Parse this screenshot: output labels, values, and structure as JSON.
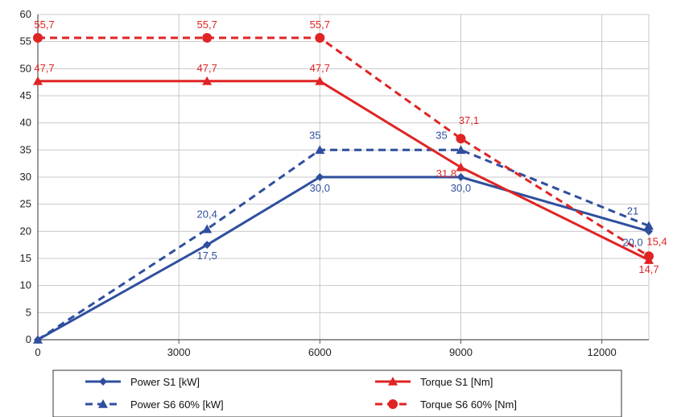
{
  "colors": {
    "blue": "#2f4f9e",
    "red": "#e02424",
    "grid": "#c8c8c8",
    "axis": "#555555"
  },
  "chart_data": {
    "type": "line",
    "xlim": [
      0,
      13000
    ],
    "ylim": [
      0,
      60
    ],
    "x_ticks": [
      "0",
      "3000",
      "6000",
      "9000",
      "12000"
    ],
    "x_tick_values": [
      0,
      3000,
      6000,
      9000,
      12000
    ],
    "y_ticks": [
      "0",
      "5",
      "10",
      "15",
      "20",
      "25",
      "30",
      "35",
      "40",
      "45",
      "50",
      "55",
      "60"
    ],
    "y_tick_values": [
      0,
      5,
      10,
      15,
      20,
      25,
      30,
      35,
      40,
      45,
      50,
      55,
      60
    ],
    "grid": true,
    "legend_position": "bottom",
    "series": [
      {
        "name": "Power S1 [kW]",
        "color": "#2f4f9e",
        "style": "solid",
        "marker": "diamond",
        "x": [
          0,
          3600,
          6000,
          9000,
          13000
        ],
        "y": [
          0,
          17.5,
          30.0,
          30.0,
          20.0
        ],
        "labels": [
          "",
          "17,5",
          "30,0",
          "30,0",
          "20,0"
        ]
      },
      {
        "name": "Power S6 60% [kW]",
        "color": "#2f4f9e",
        "style": "dashed",
        "marker": "triangle",
        "x": [
          0,
          3600,
          6000,
          9000,
          13000
        ],
        "y": [
          0,
          20.4,
          35,
          35,
          21
        ],
        "labels": [
          "",
          "20,4",
          "35",
          "35",
          "21"
        ]
      },
      {
        "name": "Torque S1 [Nm]",
        "color": "#e02424",
        "style": "solid",
        "marker": "triangle",
        "x": [
          0,
          3600,
          6000,
          9000,
          13000
        ],
        "y": [
          47.7,
          47.7,
          47.7,
          31.8,
          14.7
        ],
        "labels": [
          "47,7",
          "47,7",
          "47,7",
          "31,8",
          "14,7"
        ]
      },
      {
        "name": "Torque S6 60% [Nm]",
        "color": "#e02424",
        "style": "dashed",
        "marker": "circle",
        "x": [
          0,
          3600,
          6000,
          9000,
          13000
        ],
        "y": [
          55.7,
          55.7,
          55.7,
          37.1,
          15.4
        ],
        "labels": [
          "55,7",
          "55,7",
          "55,7",
          "37,1",
          "15,4"
        ]
      }
    ]
  }
}
